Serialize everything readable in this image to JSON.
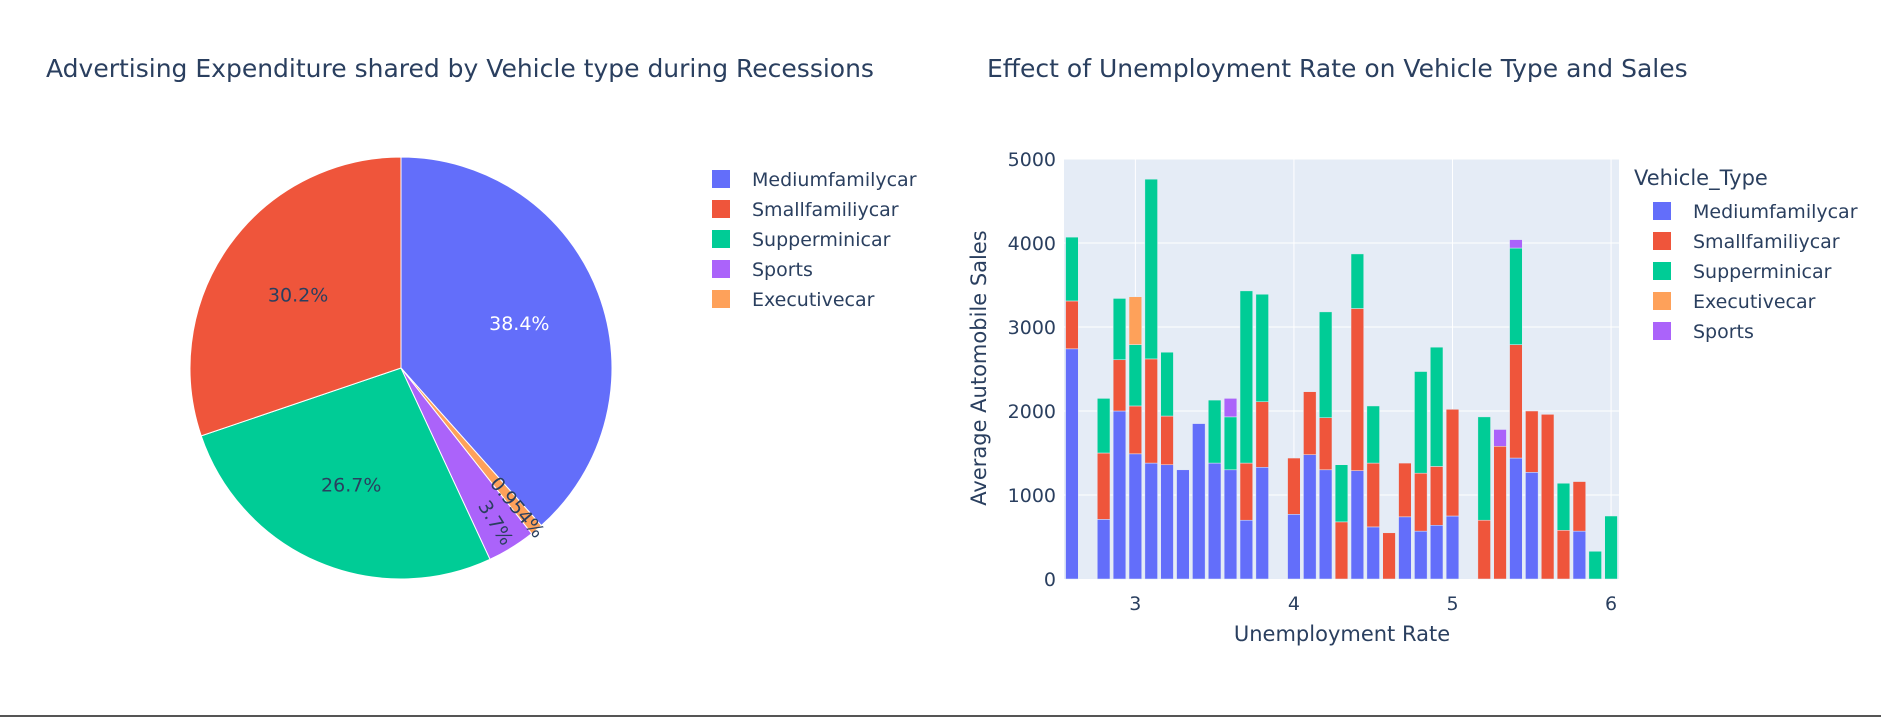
{
  "colors": {
    "Mediumfamilycar": "#636efa",
    "Smallfamiliycar": "#ef553b",
    "Supperminicar": "#00cc96",
    "Sports": "#ab63fa",
    "Executivecar": "#fea15a",
    "plot_bg": "#e5ecf6",
    "grid": "#ffffff",
    "text": "#2a3f5f"
  },
  "chart_data": [
    {
      "type": "pie",
      "title": "Advertising Expenditure shared by Vehicle type during Recessions",
      "legend_position": "right",
      "slices": [
        {
          "label": "Mediumfamilycar",
          "value": 38.4,
          "text": "38.4%"
        },
        {
          "label": "Smallfamiliycar",
          "value": 30.2,
          "text": "30.2%"
        },
        {
          "label": "Supperminicar",
          "value": 26.7,
          "text": "26.7%"
        },
        {
          "label": "Sports",
          "value": 3.7,
          "text": "3.7%"
        },
        {
          "label": "Executivecar",
          "value": 0.954,
          "text": "0.954%"
        }
      ],
      "legend": [
        "Mediumfamilycar",
        "Smallfamiliycar",
        "Supperminicar",
        "Sports",
        "Executivecar"
      ],
      "slice_order": [
        "Mediumfamilycar",
        "Executivecar",
        "Sports",
        "Supperminicar",
        "Smallfamiliycar"
      ]
    },
    {
      "type": "bar",
      "stacked": true,
      "title": "Effect of Unemployment Rate on Vehicle Type and Sales",
      "xlabel": "Unemployment Rate",
      "ylabel": "Average Automobile Sales",
      "legend_title": "Vehicle_Type",
      "legend_position": "right",
      "legend": [
        "Mediumfamilycar",
        "Smallfamiliycar",
        "Supperminicar",
        "Executivecar",
        "Sports"
      ],
      "xlim": [
        2.55,
        6.05
      ],
      "ylim": [
        0,
        5000
      ],
      "xticks": [
        "3",
        "4",
        "5",
        "6"
      ],
      "yticks": [
        "0",
        "1000",
        "2000",
        "3000",
        "4000",
        "5000"
      ],
      "bar_width": 0.08,
      "x": [
        2.6,
        2.8,
        2.9,
        3.0,
        3.1,
        3.2,
        3.3,
        3.4,
        3.5,
        3.6,
        3.7,
        3.8,
        4.0,
        4.1,
        4.2,
        4.3,
        4.4,
        4.5,
        4.6,
        4.7,
        4.8,
        4.9,
        5.0,
        5.2,
        5.3,
        5.4,
        5.5,
        5.6,
        5.7,
        5.8,
        5.9,
        6.0
      ],
      "series": [
        {
          "name": "Mediumfamilycar",
          "values": [
            2740,
            710,
            2000,
            1490,
            1380,
            1360,
            1300,
            1850,
            1380,
            1300,
            700,
            1330,
            770,
            1480,
            1300,
            0,
            1290,
            620,
            0,
            740,
            570,
            640,
            750,
            0,
            0,
            1440,
            1270,
            0,
            0,
            570,
            0,
            0
          ]
        },
        {
          "name": "Smallfamiliycar",
          "values": [
            570,
            790,
            610,
            570,
            1240,
            580,
            0,
            0,
            0,
            0,
            680,
            780,
            670,
            750,
            620,
            680,
            1930,
            760,
            550,
            640,
            690,
            700,
            1270,
            700,
            1580,
            1350,
            730,
            1960,
            580,
            590,
            0,
            0
          ]
        },
        {
          "name": "Supperminicar",
          "values": [
            760,
            650,
            730,
            730,
            2140,
            760,
            0,
            0,
            750,
            630,
            2050,
            1280,
            0,
            0,
            1260,
            680,
            650,
            680,
            0,
            0,
            1210,
            1420,
            0,
            1230,
            0,
            1150,
            0,
            0,
            560,
            0,
            330,
            750
          ]
        },
        {
          "name": "Executivecar",
          "values": [
            0,
            0,
            0,
            570,
            0,
            0,
            0,
            0,
            0,
            0,
            0,
            0,
            0,
            0,
            0,
            0,
            0,
            0,
            0,
            0,
            0,
            0,
            0,
            0,
            0,
            0,
            0,
            0,
            0,
            0,
            0,
            0
          ]
        },
        {
          "name": "Sports",
          "values": [
            0,
            0,
            0,
            0,
            0,
            0,
            0,
            0,
            0,
            220,
            0,
            0,
            0,
            0,
            0,
            0,
            0,
            0,
            0,
            0,
            0,
            0,
            0,
            0,
            200,
            100,
            0,
            0,
            0,
            0,
            0,
            0
          ]
        }
      ]
    }
  ]
}
